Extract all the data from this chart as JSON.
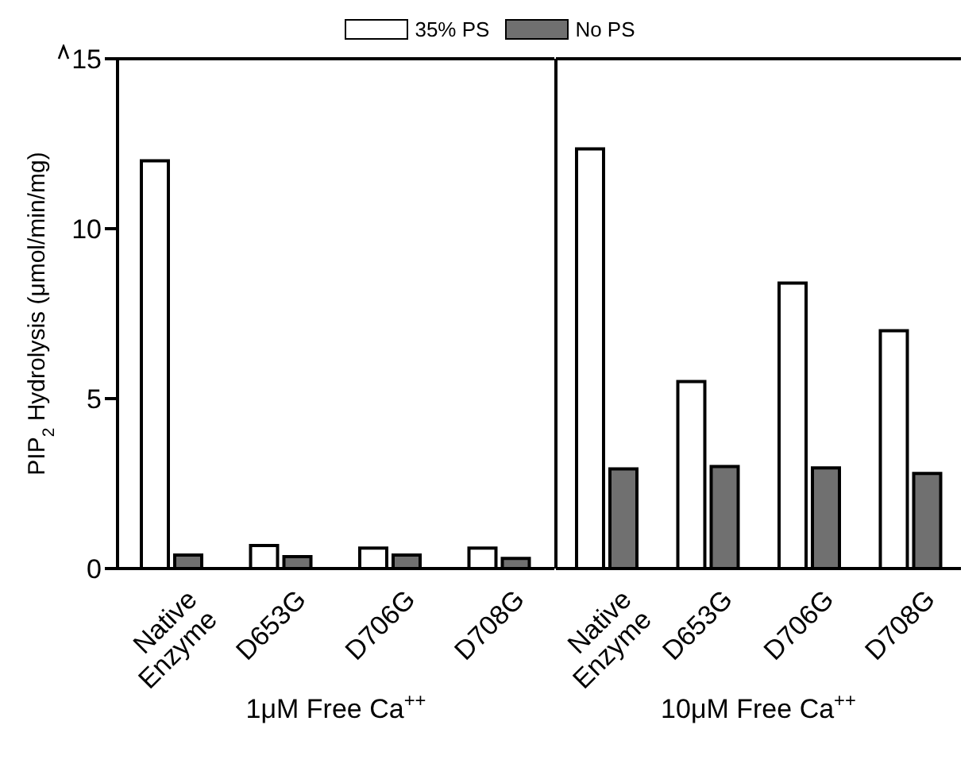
{
  "chart_data": [
    {
      "type": "bar",
      "categories": [
        "Native Enzyme",
        "D653G",
        "D706G",
        "D708G"
      ],
      "xlabel": "1μM Free Ca$^{++}$",
      "ylabel": "PIP$_{2}$ Hydrolysis (μmol/min/mg)",
      "ylim": [
        0,
        15
      ],
      "yticks": [
        0,
        5,
        10,
        15
      ],
      "legend": "top",
      "series": [
        {
          "name": "35% PS",
          "color": "#ffffff",
          "values": [
            12.0,
            0.68,
            0.6,
            0.6
          ]
        },
        {
          "name": "No PS",
          "color": "#707070",
          "values": [
            0.4,
            0.35,
            0.4,
            0.3
          ]
        }
      ]
    },
    {
      "type": "bar",
      "categories": [
        "Native Enzyme",
        "D653G",
        "D706G",
        "D708G"
      ],
      "xlabel": "10μM Free Ca$^{++}$",
      "ylim": [
        0,
        15
      ],
      "yticks": [
        0,
        5,
        10,
        15
      ],
      "tick_labels": "x",
      "series": [
        {
          "color": "#ffffff",
          "values": [
            12.35,
            5.5,
            8.4,
            7.0
          ]
        },
        {
          "color": "#707070",
          "values": [
            2.93,
            3.0,
            2.96,
            2.8
          ]
        }
      ]
    }
  ]
}
